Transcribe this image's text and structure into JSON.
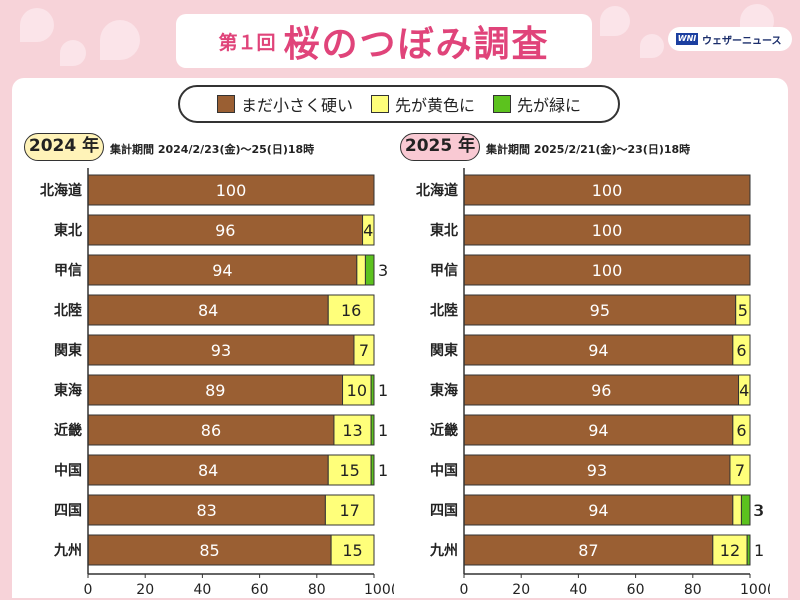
{
  "header": {
    "title_prefix": "第１回",
    "title_main": "桜のつぼみ調査",
    "brand_logo": "WNI",
    "brand_name": "ウェザーニュース"
  },
  "legend": {
    "items": [
      {
        "label": "まだ小さく硬い",
        "color": "#9a5f33"
      },
      {
        "label": "先が黄色に",
        "color": "#ffff7a"
      },
      {
        "label": "先が緑に",
        "color": "#5cc21e"
      }
    ]
  },
  "colors": {
    "brown": "#9a5f33",
    "yellow": "#ffff7a",
    "green": "#5cc21e",
    "accent": "#e0447a"
  },
  "chart_data": [
    {
      "type": "bar",
      "year_label": "2024 年",
      "year_color": "#fff3b8",
      "period": "集計期間 2024/2/23(金)～25(日)18時",
      "xlim": [
        0,
        100
      ],
      "xticks": [
        "0",
        "20",
        "40",
        "60",
        "80",
        "100(%)"
      ],
      "categories": [
        "北海道",
        "東北",
        "甲信",
        "北陸",
        "関東",
        "東海",
        "近畿",
        "中国",
        "四国",
        "九州"
      ],
      "series": [
        {
          "name": "まだ小さく硬い",
          "values": [
            100,
            96,
            94,
            84,
            93,
            89,
            86,
            84,
            83,
            85
          ]
        },
        {
          "name": "先が黄色に",
          "values": [
            0,
            4,
            3,
            16,
            7,
            10,
            13,
            15,
            17,
            15
          ]
        },
        {
          "name": "先が緑に",
          "values": [
            0,
            0,
            3,
            0,
            0,
            1,
            1,
            1,
            0,
            0
          ]
        }
      ],
      "labels": [
        [
          "100",
          "",
          ""
        ],
        [
          "96",
          "4",
          ""
        ],
        [
          "94",
          "",
          "3"
        ],
        [
          "84",
          "16",
          ""
        ],
        [
          "93",
          "7",
          ""
        ],
        [
          "89",
          "10",
          "1"
        ],
        [
          "86",
          "13",
          "1"
        ],
        [
          "84",
          "15",
          "1"
        ],
        [
          "83",
          "17",
          ""
        ],
        [
          "85",
          "15",
          ""
        ]
      ]
    },
    {
      "type": "bar",
      "year_label": "2025 年",
      "year_color": "#f9c9d3",
      "period": "集計期間 2025/2/21(金)～23(日)18時",
      "xlim": [
        0,
        100
      ],
      "xticks": [
        "0",
        "20",
        "40",
        "60",
        "80",
        "100(%)"
      ],
      "categories": [
        "北海道",
        "東北",
        "甲信",
        "北陸",
        "関東",
        "東海",
        "近畿",
        "中国",
        "四国",
        "九州"
      ],
      "series": [
        {
          "name": "まだ小さく硬い",
          "values": [
            100,
            100,
            100,
            95,
            94,
            96,
            94,
            93,
            94,
            87
          ]
        },
        {
          "name": "先が黄色に",
          "values": [
            0,
            0,
            0,
            5,
            6,
            4,
            6,
            7,
            3,
            12
          ]
        },
        {
          "name": "先が緑に",
          "values": [
            0,
            0,
            0,
            0,
            0,
            0,
            0,
            0,
            3,
            1
          ]
        }
      ],
      "labels": [
        [
          "100",
          "",
          ""
        ],
        [
          "100",
          "",
          ""
        ],
        [
          "100",
          "",
          ""
        ],
        [
          "95",
          "5",
          ""
        ],
        [
          "94",
          "6",
          ""
        ],
        [
          "96",
          "4",
          ""
        ],
        [
          "94",
          "6",
          ""
        ],
        [
          "93",
          "7",
          ""
        ],
        [
          "94",
          "3",
          "3"
        ],
        [
          "87",
          "12",
          "1"
        ]
      ]
    }
  ]
}
